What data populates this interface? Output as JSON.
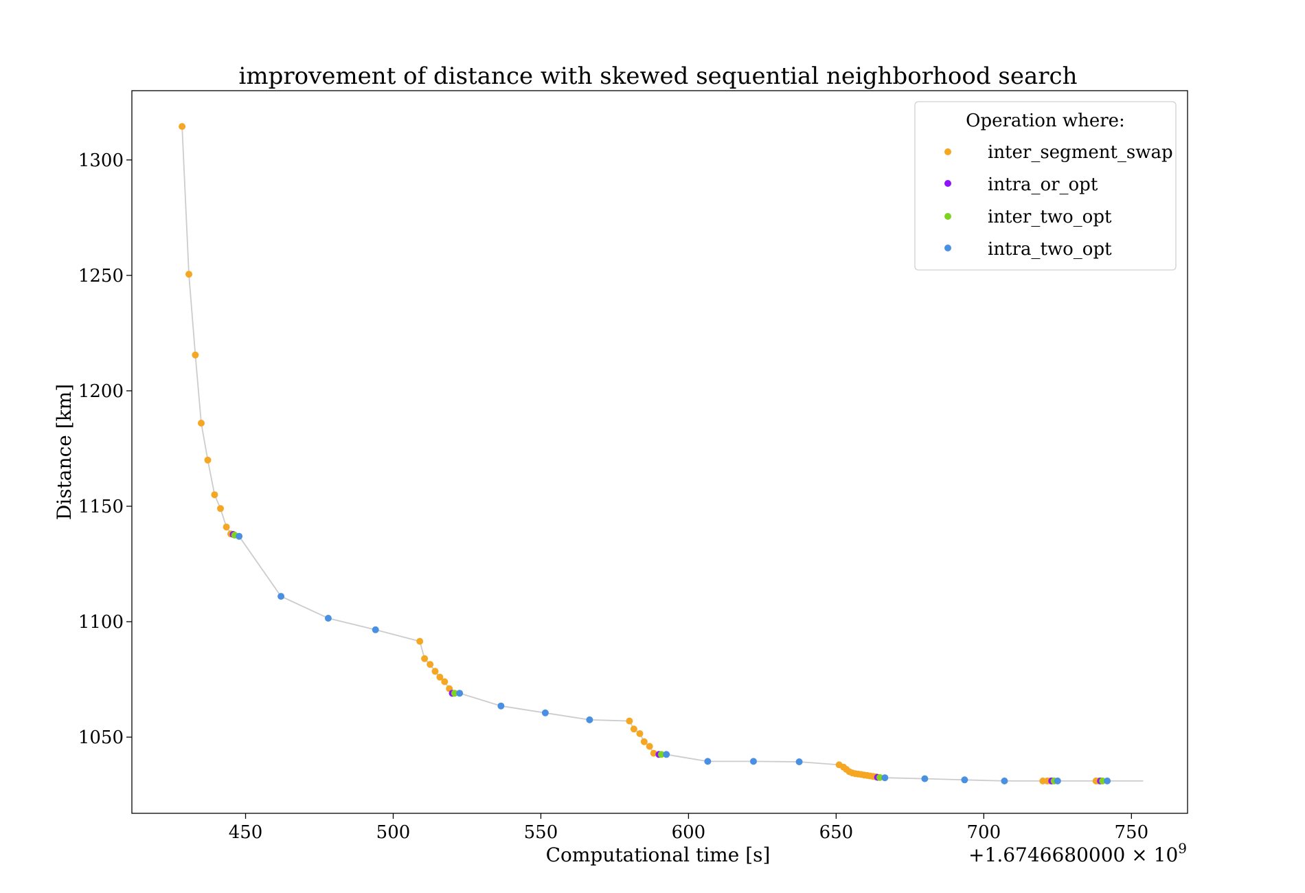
{
  "chart_data": {
    "type": "scatter",
    "title": "improvement of distance with skewed sequential neighborhood search",
    "xlabel": "Computational time [s]",
    "ylabel": "Distance [km]",
    "x_offset_label": "+1.6746680000 × 10",
    "x_offset_exponent": "9",
    "xlim": [
      411.5,
      769
    ],
    "ylim": [
      1017,
      1330
    ],
    "x_ticks": [
      450,
      500,
      550,
      600,
      650,
      700,
      750
    ],
    "y_ticks": [
      1050,
      1100,
      1150,
      1200,
      1250,
      1300
    ],
    "grid": false,
    "line_color": "#cccccc",
    "legend": {
      "title": "Operation where:",
      "placement": "top-right",
      "entries": [
        {
          "name": "inter_segment_swap",
          "color": "#F5A623"
        },
        {
          "name": "intra_or_opt",
          "color": "#9013FE"
        },
        {
          "name": "inter_two_opt",
          "color": "#7ED321"
        },
        {
          "name": "intra_two_opt",
          "color": "#4A90E2"
        }
      ]
    },
    "line": {
      "x": [
        428.5,
        430.8,
        433.0,
        435.0,
        437.2,
        439.5,
        441.5,
        443.5,
        445.5,
        446.5,
        447.8,
        462.0,
        478.0,
        494.0,
        509.0,
        510.6,
        512.5,
        514.2,
        515.8,
        517.4,
        519.0,
        520.5,
        521.0,
        522.5,
        536.5,
        551.5,
        566.5,
        580.0,
        581.5,
        583.5,
        585.0,
        586.8,
        588.2,
        590.5,
        591.5,
        592.5,
        606.5,
        622.0,
        637.5,
        651.0,
        652.5,
        653.5,
        654.5,
        655.5,
        656.5,
        657.5,
        658.5,
        659.5,
        660.5,
        661.5,
        662.5,
        663.5,
        664.5,
        665.5,
        666.5,
        680.0,
        693.5,
        707.0,
        720.0,
        721.5,
        722.5,
        723.5,
        724.5,
        725.0,
        738.0,
        739.0,
        740.0,
        741.0,
        741.8,
        754.0
      ],
      "y": [
        1314.5,
        1250.5,
        1215.5,
        1186.0,
        1170.0,
        1155.0,
        1149.0,
        1141.0,
        1137.5,
        1137.5,
        1137.0,
        1111.0,
        1101.5,
        1096.5,
        1091.5,
        1084.0,
        1081.5,
        1078.5,
        1076.0,
        1074.0,
        1071.0,
        1069.0,
        1069.0,
        1069.0,
        1063.5,
        1060.5,
        1057.5,
        1057.0,
        1053.5,
        1051.5,
        1048.0,
        1046.0,
        1043.0,
        1042.5,
        1042.5,
        1042.5,
        1039.5,
        1039.5,
        1039.3,
        1038.0,
        1037.0,
        1036.0,
        1035.0,
        1034.5,
        1034.2,
        1034.0,
        1033.8,
        1033.6,
        1033.4,
        1033.2,
        1033.0,
        1032.8,
        1032.6,
        1032.4,
        1032.4,
        1032.0,
        1031.5,
        1031.0,
        1031.0,
        1031.0,
        1031.0,
        1031.0,
        1031.0,
        1031.0,
        1031.0,
        1031.0,
        1031.0,
        1031.0,
        1031.0,
        1031.0
      ]
    },
    "series": [
      {
        "name": "inter_segment_swap",
        "color": "#F5A623",
        "x": [
          428.5,
          430.8,
          433.0,
          435.0,
          437.2,
          439.5,
          441.5,
          443.5,
          445.0,
          509.0,
          510.6,
          512.5,
          514.2,
          515.8,
          517.4,
          519.0,
          580.0,
          581.5,
          583.5,
          585.0,
          586.8,
          588.2,
          651.0,
          652.5,
          653.5,
          654.5,
          655.5,
          656.5,
          657.5,
          658.5,
          659.5,
          660.5,
          661.5,
          662.5,
          663.5,
          720.0,
          721.5,
          722.5,
          738.0,
          739.0
        ],
        "y": [
          1314.5,
          1250.5,
          1215.5,
          1186.0,
          1170.0,
          1155.0,
          1149.0,
          1141.0,
          1138.0,
          1091.5,
          1084.0,
          1081.5,
          1078.5,
          1076.0,
          1074.0,
          1071.0,
          1057.0,
          1053.5,
          1051.5,
          1048.0,
          1046.0,
          1043.0,
          1038.0,
          1037.0,
          1036.0,
          1035.0,
          1034.5,
          1034.2,
          1034.0,
          1033.8,
          1033.6,
          1033.4,
          1033.2,
          1033.0,
          1032.8,
          1031.0,
          1031.0,
          1031.0,
          1031.0,
          1031.0
        ]
      },
      {
        "name": "intra_or_opt",
        "color": "#9013FE",
        "x": [
          445.8,
          520.0,
          590.0,
          664.0,
          723.0,
          739.5
        ],
        "y": [
          1137.8,
          1069.0,
          1042.5,
          1032.6,
          1031.0,
          1031.0
        ]
      },
      {
        "name": "inter_two_opt",
        "color": "#7ED321",
        "x": [
          446.3,
          520.8,
          590.8,
          664.8,
          723.8,
          740.2
        ],
        "y": [
          1137.5,
          1069.0,
          1042.5,
          1032.5,
          1031.0,
          1031.0
        ]
      },
      {
        "name": "intra_two_opt",
        "color": "#4A90E2",
        "x": [
          447.8,
          462.0,
          478.0,
          494.0,
          522.5,
          536.5,
          551.5,
          566.5,
          592.5,
          606.5,
          622.0,
          637.5,
          666.5,
          680.0,
          693.5,
          707.0,
          725.0,
          741.8
        ],
        "y": [
          1137.0,
          1111.0,
          1101.5,
          1096.5,
          1069.0,
          1063.5,
          1060.5,
          1057.5,
          1042.5,
          1039.5,
          1039.5,
          1039.3,
          1032.4,
          1032.0,
          1031.5,
          1031.0,
          1031.0,
          1031.0
        ]
      }
    ]
  }
}
